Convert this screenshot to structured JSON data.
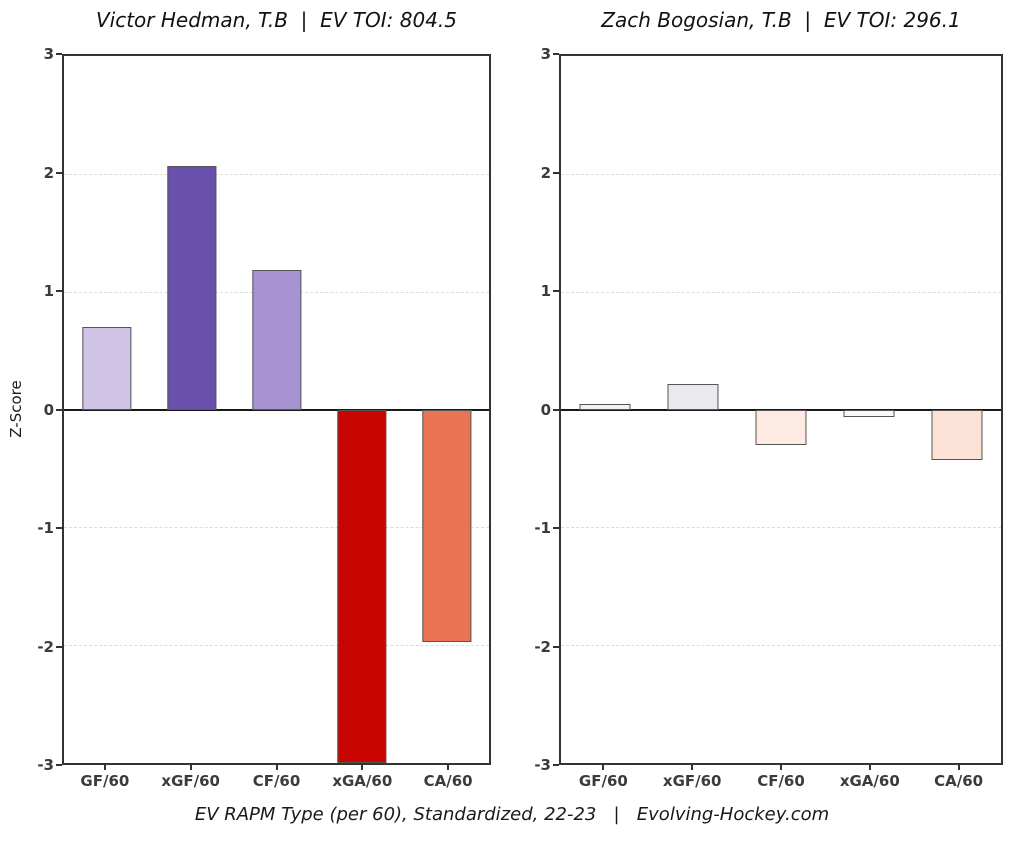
{
  "caption": "EV RAPM Type (per 60), Standardized, 22-23   |   Evolving-Hockey.com",
  "chart_data": [
    {
      "type": "bar",
      "title": "Victor Hedman, T.B  |  EV TOI: 804.5",
      "player": "Victor Hedman",
      "team": "T.B",
      "ev_toi": 804.5,
      "categories": [
        "GF/60",
        "xGF/60",
        "CF/60",
        "xGA/60",
        "CA/60"
      ],
      "values": [
        0.7,
        2.07,
        1.18,
        -3.0,
        -1.97
      ],
      "bar_colors": [
        "#cfc3e6",
        "#6950ad",
        "#a793d1",
        "#c90502",
        "#e87355"
      ],
      "xlabel": "",
      "ylabel": "Z-Score",
      "ylim": [
        -3,
        3
      ],
      "yticks": [
        3,
        2,
        1,
        0,
        -1,
        -2,
        -3
      ],
      "grid": true,
      "legend_position": "none"
    },
    {
      "type": "bar",
      "title": "Zach Bogosian, T.B  |  EV TOI: 296.1",
      "player": "Zach Bogosian",
      "team": "T.B",
      "ev_toi": 296.1,
      "categories": [
        "GF/60",
        "xGF/60",
        "CF/60",
        "xGA/60",
        "CA/60"
      ],
      "values": [
        0.05,
        0.22,
        -0.3,
        -0.06,
        -0.43
      ],
      "bar_colors": [
        "#f3f1f6",
        "#e9e9ee",
        "#fdeae1",
        "#fdf8f6",
        "#fce1d6"
      ],
      "xlabel": "",
      "ylabel": "",
      "ylim": [
        -3,
        3
      ],
      "yticks": [
        3,
        2,
        1,
        0,
        -1,
        -2,
        -3
      ],
      "grid": true,
      "legend_position": "none"
    }
  ]
}
